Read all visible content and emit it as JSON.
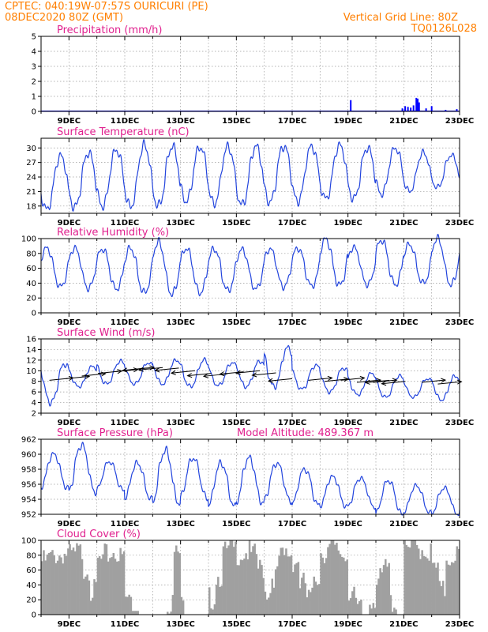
{
  "header": {
    "line1_left": "CPTEC:   040:19W-07:57S   OURICURI (PE)",
    "line2_left": "08DEC2020 80Z (GMT)",
    "line1_right": "Vertical Grid Line: 80Z",
    "line2_right": "TQ0126L028"
  },
  "chart_data": [
    {
      "id": "precip",
      "type": "bar",
      "title": "Precipitation (mm/h)",
      "ylim": [
        0,
        5
      ],
      "yticks": [
        0,
        1,
        2,
        3,
        4,
        5
      ],
      "xtick_labels": [
        "9DEC",
        "11DEC",
        "13DEC",
        "15DEC",
        "17DEC",
        "19DEC",
        "21DEC",
        "23DEC"
      ],
      "color": "#0000ff",
      "x_days": [
        11.0,
        15.5,
        19.1,
        20.95,
        21.05,
        21.15,
        21.25,
        21.35,
        21.45,
        21.5,
        21.55,
        21.8,
        22.0,
        22.5,
        22.9
      ],
      "values": [
        0.02,
        0.02,
        0.75,
        0.2,
        0.35,
        0.3,
        0.25,
        0.4,
        0.9,
        0.85,
        0.6,
        0.2,
        0.35,
        0.1,
        0.15
      ]
    },
    {
      "id": "temp",
      "type": "line",
      "title": "Surface Temperature (nC)",
      "ylim": [
        16.5,
        32
      ],
      "yticks": [
        18,
        21,
        24,
        27,
        30
      ],
      "xtick_labels": [
        "9DEC",
        "11DEC",
        "13DEC",
        "15DEC",
        "17DEC",
        "19DEC",
        "21DEC",
        "23DEC"
      ],
      "color": "#2244dd",
      "daily_max": [
        28.3,
        29.0,
        29.6,
        30.5,
        30.3,
        30.2,
        30.2,
        30.3,
        30.4,
        30.3,
        30.5,
        30.0,
        30.0,
        29.0,
        28.5,
        28.3,
        28.3,
        27.6
      ],
      "daily_min": [
        17.3,
        17.7,
        18.0,
        17.8,
        18.0,
        19.0,
        18.5,
        18.2,
        18.8,
        19.0,
        19.5,
        19.5,
        20.5,
        21.0,
        21.8,
        22.5,
        23.0,
        22.5
      ]
    },
    {
      "id": "rh",
      "type": "line",
      "title": "Relative Humidity (%)",
      "ylim": [
        0,
        100
      ],
      "yticks": [
        0,
        20,
        40,
        60,
        80,
        100
      ],
      "xtick_labels": [
        "9DEC",
        "11DEC",
        "13DEC",
        "15DEC",
        "17DEC",
        "19DEC",
        "21DEC",
        "23DEC"
      ],
      "color": "#2244dd",
      "daily_max": [
        87,
        87,
        86,
        87,
        95,
        87,
        86,
        85,
        86,
        87,
        99,
        88,
        98,
        92,
        100,
        97,
        97,
        85
      ],
      "daily_min": [
        35,
        33,
        32,
        27,
        25,
        27,
        30,
        32,
        35,
        36,
        37,
        38,
        38,
        40,
        38,
        40,
        45,
        48
      ]
    },
    {
      "id": "wind",
      "type": "line",
      "title": "Surface Wind (m/s)",
      "ylim": [
        2,
        16
      ],
      "yticks": [
        2,
        4,
        6,
        8,
        10,
        12,
        14,
        16
      ],
      "xtick_labels": [
        "9DEC",
        "11DEC",
        "13DEC",
        "15DEC",
        "17DEC",
        "19DEC",
        "21DEC",
        "23DEC"
      ],
      "color": "#2244dd",
      "daily_max": [
        11.3,
        10.8,
        11.8,
        11.5,
        12.0,
        12.0,
        11.5,
        11.8,
        14.3,
        11.0,
        10.5,
        9.5,
        9.0,
        8.5,
        9.0,
        8.5,
        8.0,
        8.5
      ],
      "daily_min": [
        4.0,
        7.0,
        7.5,
        7.5,
        7.5,
        7.0,
        7.2,
        7.0,
        7.0,
        6.5,
        6.0,
        5.5,
        5.0,
        5.0,
        4.5,
        4.5,
        3.5,
        3.5
      ],
      "arrow_y": [
        8.2,
        8.5,
        9.0,
        9.5,
        9.8,
        10.2,
        10.5,
        10.6,
        10.5,
        10.0,
        9.5,
        9.4,
        9.8,
        10.0,
        9.6,
        8.5,
        8.2,
        8.0,
        8.2,
        7.8,
        7.8,
        8.2,
        8.0,
        7.8,
        7.5
      ],
      "arrow_dir": [
        1,
        1,
        1,
        1,
        1,
        1,
        -1,
        -1,
        -1,
        -1,
        -1,
        -1,
        -1,
        -1,
        -1,
        -1,
        1,
        1,
        1,
        1,
        1,
        -1,
        -1,
        1,
        1
      ]
    },
    {
      "id": "pres",
      "type": "line",
      "title": "Surface Pressure (hPa)",
      "subtitle": "Model Altitude: 489.367 m",
      "ylim": [
        952,
        962
      ],
      "yticks": [
        952,
        954,
        956,
        958,
        960,
        962
      ],
      "xtick_labels": [
        "9DEC",
        "11DEC",
        "13DEC",
        "15DEC",
        "17DEC",
        "19DEC",
        "21DEC",
        "23DEC"
      ],
      "color": "#2244dd",
      "daily_max": [
        960.0,
        961.2,
        959.0,
        958.8,
        960.5,
        959.5,
        958.8,
        959.5,
        958.8,
        958.0,
        957.0,
        956.8,
        956.5,
        955.8,
        955.5,
        955.0,
        955.8,
        955.5
      ],
      "daily_min": [
        955.5,
        955.0,
        955.2,
        954.0,
        953.5,
        954.2,
        953.0,
        953.5,
        953.8,
        953.2,
        953.0,
        953.0,
        952.0,
        952.2,
        952.0,
        952.5,
        952.8,
        952.5
      ]
    },
    {
      "id": "cloud",
      "type": "bar",
      "title": "Cloud Cover (%)",
      "ylim": [
        0,
        100
      ],
      "yticks": [
        0,
        20,
        40,
        60,
        80,
        100
      ],
      "xtick_labels": [
        "9DEC",
        "11DEC",
        "13DEC",
        "15DEC",
        "17DEC",
        "19DEC",
        "21DEC",
        "23DEC"
      ],
      "color": "#a0a0a0",
      "x_days": [
        8.0,
        8.25,
        8.5,
        8.75,
        9.0,
        9.25,
        9.5,
        9.75,
        10.0,
        10.25,
        10.5,
        10.75,
        11.0,
        11.25,
        11.5,
        11.75,
        12.0,
        12.25,
        12.5,
        12.75,
        13.0,
        13.25,
        13.5,
        13.75,
        14.0,
        14.25,
        14.5,
        14.75,
        15.0,
        15.25,
        15.5,
        15.75,
        16.0,
        16.25,
        16.5,
        16.75,
        17.0,
        17.25,
        17.5,
        17.75,
        18.0,
        18.25,
        18.5,
        18.75,
        19.0,
        19.25,
        19.5,
        19.75,
        20.0,
        20.25,
        20.5,
        20.75,
        21.0,
        21.25,
        21.5,
        21.75,
        22.0,
        22.25,
        22.5,
        22.75
      ],
      "values": [
        80,
        85,
        88,
        90,
        88,
        92,
        70,
        40,
        80,
        88,
        92,
        85,
        30,
        5,
        0,
        0,
        0,
        10,
        25,
        90,
        20,
        0,
        0,
        0,
        30,
        60,
        92,
        96,
        90,
        92,
        88,
        70,
        40,
        60,
        85,
        90,
        80,
        50,
        30,
        60,
        92,
        96,
        94,
        88,
        40,
        15,
        0,
        30,
        55,
        70,
        25,
        10,
        95,
        98,
        97,
        92,
        70,
        40,
        85,
        90
      ]
    }
  ]
}
